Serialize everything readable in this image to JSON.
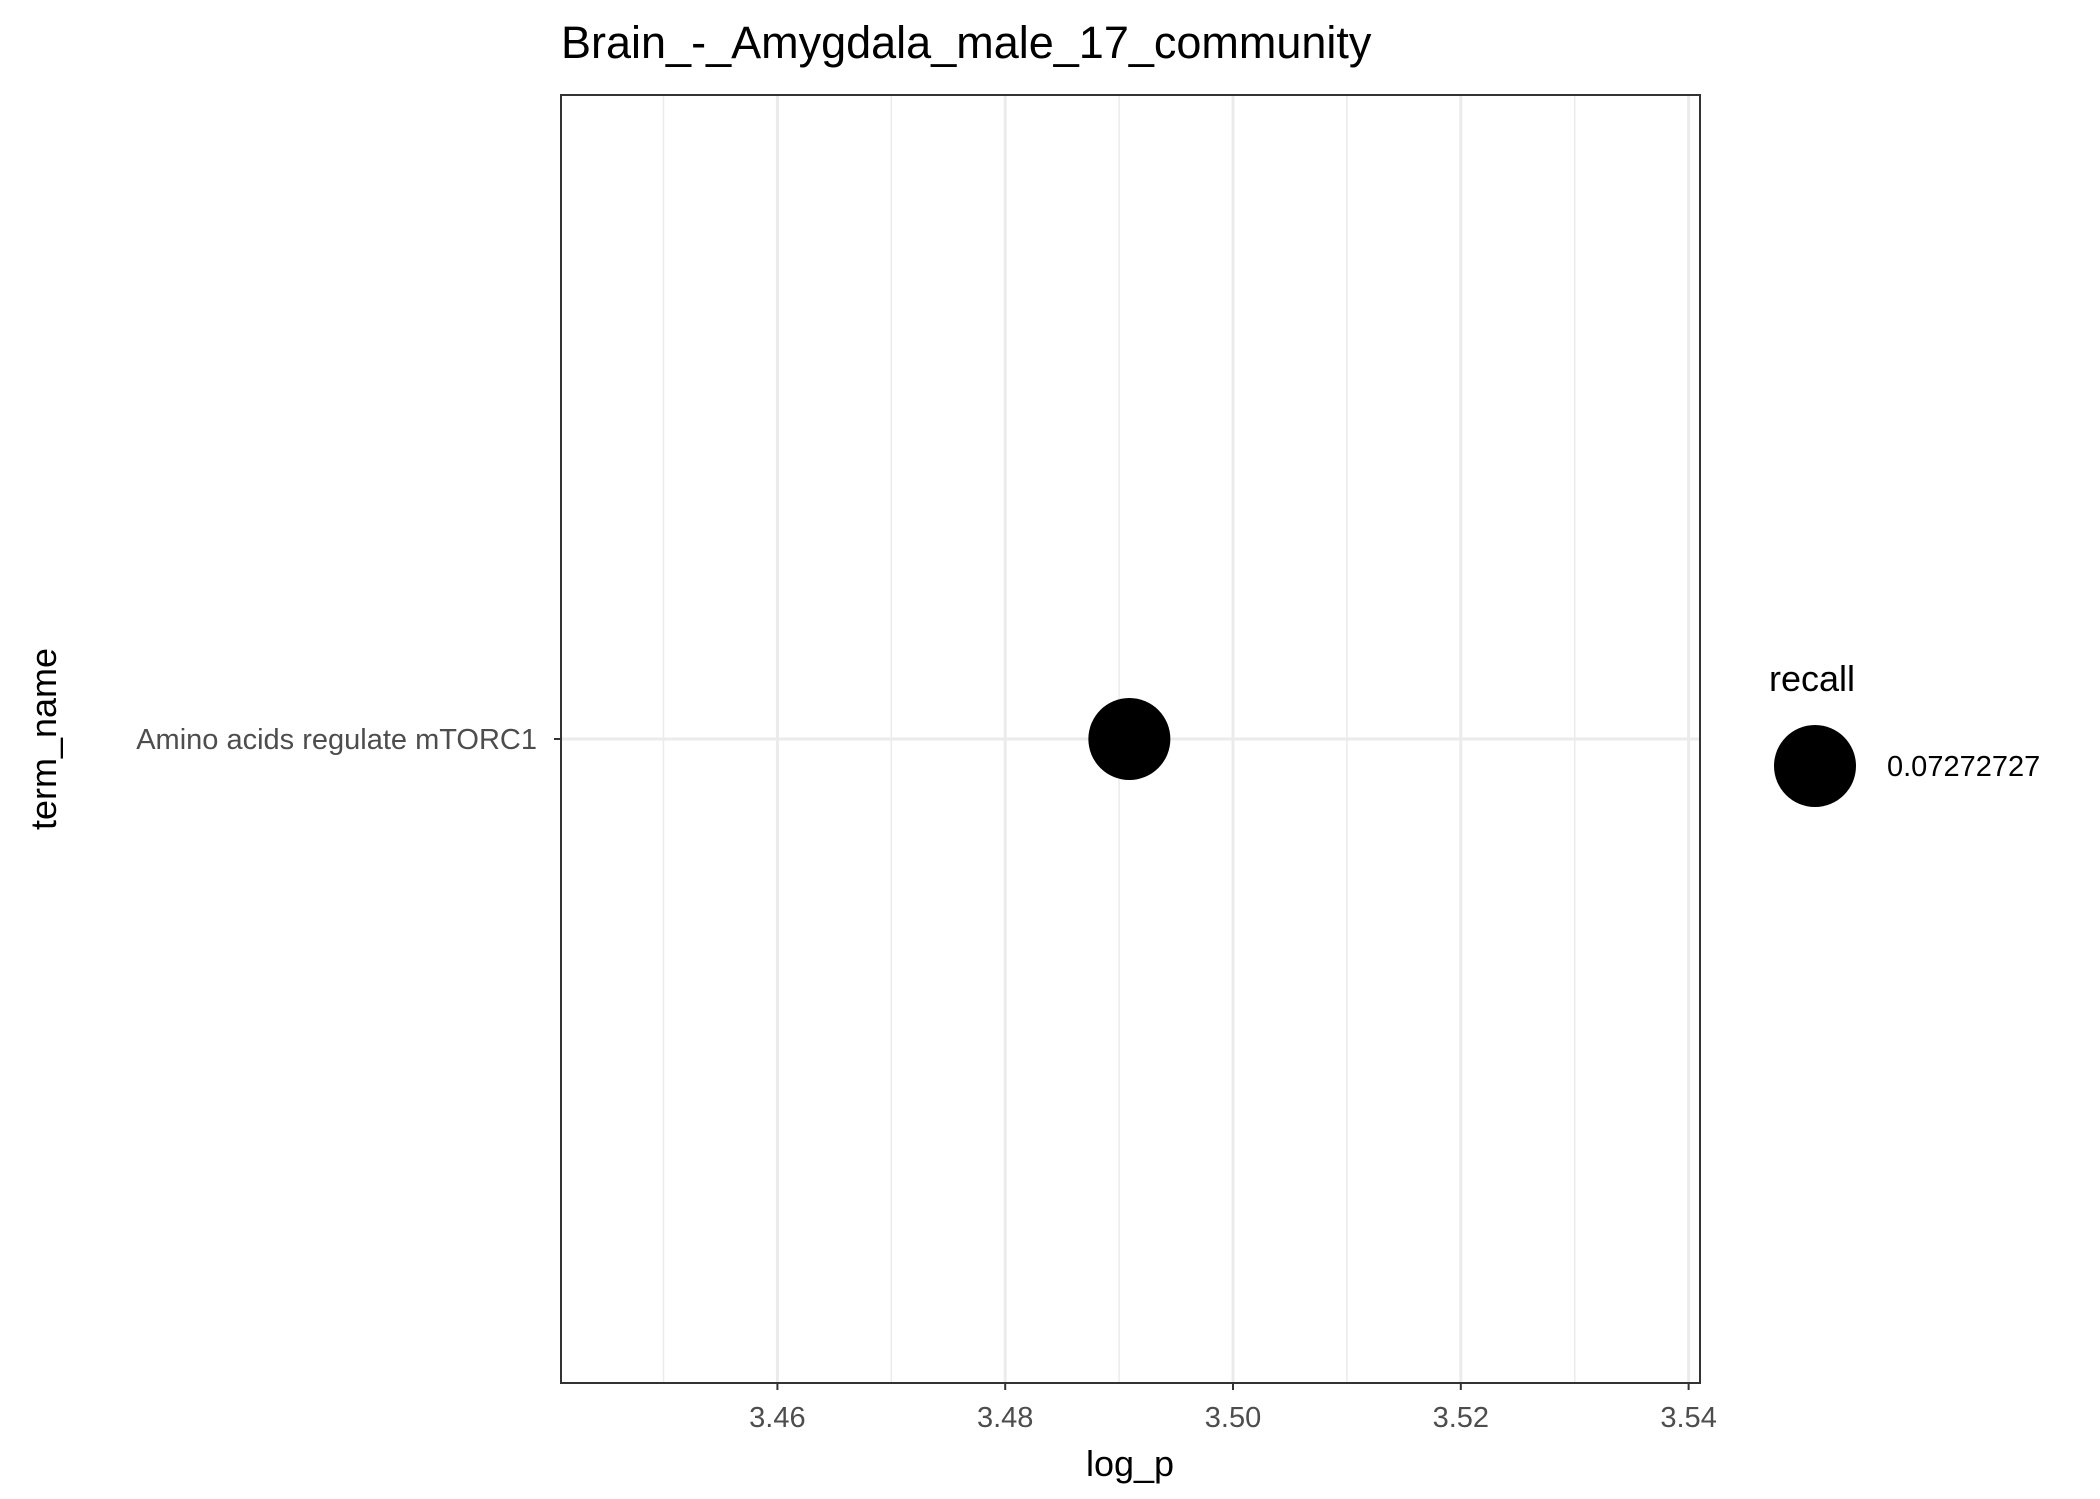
{
  "chart_data": {
    "type": "scatter",
    "title": "Brain_-_Amygdala_male_17_community",
    "xlabel": "log_p",
    "ylabel": "term_name",
    "xlim": [
      3.441,
      3.541
    ],
    "x_ticks": [
      3.46,
      3.48,
      3.5,
      3.52,
      3.54
    ],
    "x_tick_labels": [
      "3.46",
      "3.48",
      "3.50",
      "3.52",
      "3.54"
    ],
    "x_minor_ticks": [
      3.45,
      3.47,
      3.49,
      3.51,
      3.53
    ],
    "categories": [
      "Amino acids regulate mTORC1"
    ],
    "points": [
      {
        "term_name": "Amino acids regulate mTORC1",
        "log_p": 3.4909,
        "recall": 0.07272727
      }
    ],
    "grid": true,
    "legend": {
      "title": "recall",
      "position": "right",
      "entries": [
        {
          "label": "0.07272727",
          "value": 0.07272727
        }
      ]
    },
    "colors": {
      "point": "#000000",
      "grid": "#ebebeb",
      "panel_border": "#333333",
      "tick_text": "#4d4d4d"
    }
  }
}
